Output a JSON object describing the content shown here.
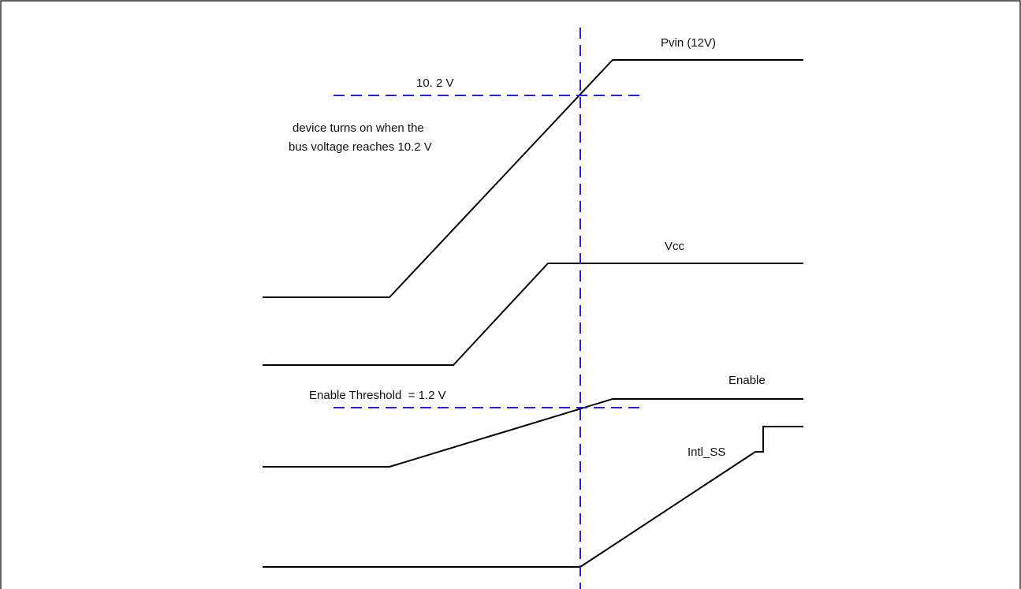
{
  "diagram": {
    "signals": [
      {
        "id": "pvin",
        "label": "Pvin (12V)"
      },
      {
        "id": "vcc",
        "label": "Vcc"
      },
      {
        "id": "enable",
        "label": "Enable"
      },
      {
        "id": "intl_ss",
        "label": "Intl_SS"
      }
    ],
    "annotations": {
      "pvin_threshold": "10. 2 V",
      "turn_on_note_line1": "device turns on when the",
      "turn_on_note_line2": "bus voltage reaches 10.2 V",
      "enable_threshold": "Enable Threshold  = 1.2 V"
    },
    "colors": {
      "signal": "#000000",
      "guide": "#2323d6",
      "border": "#000000"
    }
  }
}
